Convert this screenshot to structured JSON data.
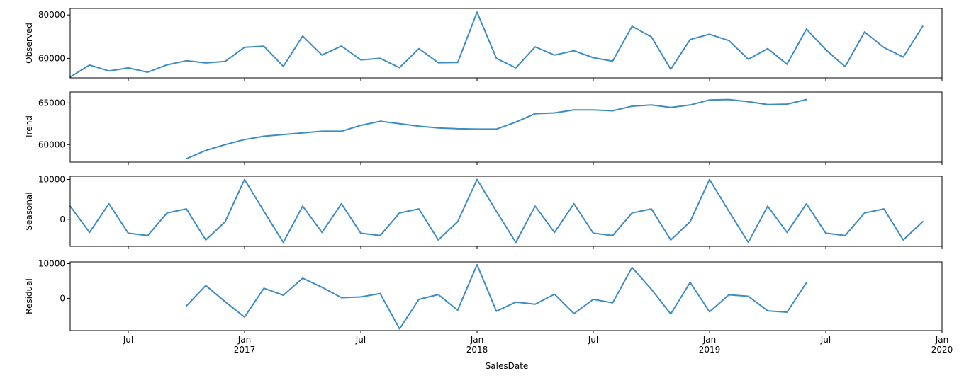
{
  "chart_data": {
    "type": "line",
    "xlabel": "SalesDate",
    "line_color": "#3d8cc4",
    "x_start": "2016-04",
    "x_end": "2020-01",
    "x_ticks": [
      {
        "date": "2016-07",
        "label": "Jul",
        "sublabel": ""
      },
      {
        "date": "2017-01",
        "label": "Jan",
        "sublabel": "2017"
      },
      {
        "date": "2017-07",
        "label": "Jul",
        "sublabel": ""
      },
      {
        "date": "2018-01",
        "label": "Jan",
        "sublabel": "2018"
      },
      {
        "date": "2018-07",
        "label": "Jul",
        "sublabel": ""
      },
      {
        "date": "2019-01",
        "label": "Jan",
        "sublabel": "2019"
      },
      {
        "date": "2019-07",
        "label": "Jul",
        "sublabel": ""
      },
      {
        "date": "2020-01",
        "label": "Jan",
        "sublabel": "2020"
      }
    ],
    "panels": [
      {
        "name": "Observed",
        "ylabel": "Observed",
        "ylim": [
          51000,
          83000
        ],
        "yticks": [
          60000,
          80000
        ],
        "points": [
          [
            "2016-04",
            51400
          ],
          [
            "2016-05",
            56900
          ],
          [
            "2016-06",
            54200
          ],
          [
            "2016-07",
            55600
          ],
          [
            "2016-08",
            53600
          ],
          [
            "2016-09",
            57000
          ],
          [
            "2016-10",
            58900
          ],
          [
            "2016-11",
            57900
          ],
          [
            "2016-12",
            58600
          ],
          [
            "2017-01",
            65100
          ],
          [
            "2017-02",
            65600
          ],
          [
            "2017-03",
            56300
          ],
          [
            "2017-04",
            70300
          ],
          [
            "2017-05",
            61500
          ],
          [
            "2017-06",
            65700
          ],
          [
            "2017-07",
            59300
          ],
          [
            "2017-08",
            60000
          ],
          [
            "2017-09",
            55700
          ],
          [
            "2017-10",
            64500
          ],
          [
            "2017-11",
            58000
          ],
          [
            "2017-12",
            58100
          ],
          [
            "2018-01",
            81300
          ],
          [
            "2018-02",
            60000
          ],
          [
            "2018-03",
            55600
          ],
          [
            "2018-04",
            65300
          ],
          [
            "2018-05",
            61500
          ],
          [
            "2018-06",
            63500
          ],
          [
            "2018-07",
            60300
          ],
          [
            "2018-08",
            58700
          ],
          [
            "2018-09",
            74800
          ],
          [
            "2018-10",
            69900
          ],
          [
            "2018-11",
            55000
          ],
          [
            "2018-12",
            68700
          ],
          [
            "2019-01",
            71100
          ],
          [
            "2019-02",
            68200
          ],
          [
            "2019-03",
            59600
          ],
          [
            "2019-04",
            64500
          ],
          [
            "2019-05",
            57300
          ],
          [
            "2019-06",
            73500
          ],
          [
            "2019-07",
            64000
          ],
          [
            "2019-08",
            56200
          ],
          [
            "2019-09",
            72200
          ],
          [
            "2019-10",
            65000
          ],
          [
            "2019-11",
            60600
          ],
          [
            "2019-12",
            74800
          ]
        ]
      },
      {
        "name": "Trend",
        "ylabel": "Trend",
        "ylim": [
          57900,
          66300
        ],
        "yticks": [
          60000,
          65000
        ],
        "points": [
          [
            "2016-10",
            58300
          ],
          [
            "2016-11",
            59300
          ],
          [
            "2016-12",
            60000
          ],
          [
            "2017-01",
            60600
          ],
          [
            "2017-02",
            61000
          ],
          [
            "2017-03",
            61200
          ],
          [
            "2017-04",
            61400
          ],
          [
            "2017-05",
            61600
          ],
          [
            "2017-06",
            61600
          ],
          [
            "2017-07",
            62300
          ],
          [
            "2017-08",
            62800
          ],
          [
            "2017-09",
            62500
          ],
          [
            "2017-10",
            62200
          ],
          [
            "2017-11",
            62000
          ],
          [
            "2017-12",
            61900
          ],
          [
            "2018-01",
            61850
          ],
          [
            "2018-02",
            61850
          ],
          [
            "2018-03",
            62700
          ],
          [
            "2018-04",
            63700
          ],
          [
            "2018-05",
            63800
          ],
          [
            "2018-06",
            64150
          ],
          [
            "2018-07",
            64150
          ],
          [
            "2018-08",
            64050
          ],
          [
            "2018-09",
            64600
          ],
          [
            "2018-10",
            64750
          ],
          [
            "2018-11",
            64450
          ],
          [
            "2018-12",
            64750
          ],
          [
            "2019-01",
            65350
          ],
          [
            "2019-02",
            65400
          ],
          [
            "2019-03",
            65150
          ],
          [
            "2019-04",
            64800
          ],
          [
            "2019-05",
            64850
          ],
          [
            "2019-06",
            65400
          ]
        ]
      },
      {
        "name": "Seasonal",
        "ylabel": "Seasonal",
        "ylim": [
          -6800,
          10800
        ],
        "yticks": [
          0,
          10000
        ],
        "points": [
          [
            "2016-04",
            3300
          ],
          [
            "2016-05",
            -3300
          ],
          [
            "2016-06",
            3900
          ],
          [
            "2016-07",
            -3500
          ],
          [
            "2016-08",
            -4100
          ],
          [
            "2016-09",
            1600
          ],
          [
            "2016-10",
            2600
          ],
          [
            "2016-11",
            -5200
          ],
          [
            "2016-12",
            -600
          ],
          [
            "2017-01",
            10000
          ],
          [
            "2017-02",
            2000
          ],
          [
            "2017-03",
            -5800
          ],
          [
            "2017-04",
            3300
          ],
          [
            "2017-05",
            -3300
          ],
          [
            "2017-06",
            3900
          ],
          [
            "2017-07",
            -3500
          ],
          [
            "2017-08",
            -4100
          ],
          [
            "2017-09",
            1600
          ],
          [
            "2017-10",
            2600
          ],
          [
            "2017-11",
            -5200
          ],
          [
            "2017-12",
            -600
          ],
          [
            "2018-01",
            10000
          ],
          [
            "2018-02",
            2000
          ],
          [
            "2018-03",
            -5800
          ],
          [
            "2018-04",
            3300
          ],
          [
            "2018-05",
            -3300
          ],
          [
            "2018-06",
            3900
          ],
          [
            "2018-07",
            -3500
          ],
          [
            "2018-08",
            -4100
          ],
          [
            "2018-09",
            1600
          ],
          [
            "2018-10",
            2600
          ],
          [
            "2018-11",
            -5200
          ],
          [
            "2018-12",
            -600
          ],
          [
            "2019-01",
            10000
          ],
          [
            "2019-02",
            2000
          ],
          [
            "2019-03",
            -5800
          ],
          [
            "2019-04",
            3300
          ],
          [
            "2019-05",
            -3300
          ],
          [
            "2019-06",
            3900
          ],
          [
            "2019-07",
            -3500
          ],
          [
            "2019-08",
            -4100
          ],
          [
            "2019-09",
            1600
          ],
          [
            "2019-10",
            2600
          ],
          [
            "2019-11",
            -5200
          ],
          [
            "2019-12",
            -600
          ]
        ]
      },
      {
        "name": "Residual",
        "ylabel": "Residual",
        "ylim": [
          -9300,
          10500
        ],
        "yticks": [
          0,
          10000
        ],
        "points": [
          [
            "2016-10",
            -2200
          ],
          [
            "2016-11",
            3700
          ],
          [
            "2016-12",
            -1000
          ],
          [
            "2017-01",
            -5400
          ],
          [
            "2017-02",
            2900
          ],
          [
            "2017-03",
            900
          ],
          [
            "2017-04",
            5800
          ],
          [
            "2017-05",
            3200
          ],
          [
            "2017-06",
            200
          ],
          [
            "2017-07",
            400
          ],
          [
            "2017-08",
            1400
          ],
          [
            "2017-09",
            -8800
          ],
          [
            "2017-10",
            -300
          ],
          [
            "2017-11",
            1100
          ],
          [
            "2017-12",
            -3400
          ],
          [
            "2018-01",
            9700
          ],
          [
            "2018-02",
            -3700
          ],
          [
            "2018-03",
            -1100
          ],
          [
            "2018-04",
            -1700
          ],
          [
            "2018-05",
            1200
          ],
          [
            "2018-06",
            -4400
          ],
          [
            "2018-07",
            -300
          ],
          [
            "2018-08",
            -1300
          ],
          [
            "2018-09",
            8900
          ],
          [
            "2018-10",
            2600
          ],
          [
            "2018-11",
            -4500
          ],
          [
            "2018-12",
            4600
          ],
          [
            "2019-01",
            -3900
          ],
          [
            "2019-02",
            1000
          ],
          [
            "2019-03",
            600
          ],
          [
            "2019-04",
            -3600
          ],
          [
            "2019-05",
            -4000
          ],
          [
            "2019-06",
            4500
          ]
        ]
      }
    ]
  }
}
